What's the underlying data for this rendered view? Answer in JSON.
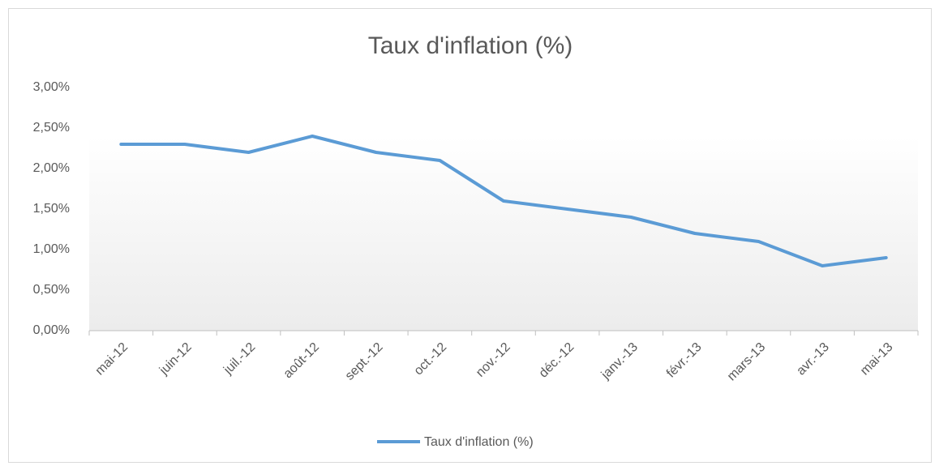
{
  "chart_data": {
    "type": "line",
    "title": "Taux d'inflation (%)",
    "categories": [
      "mai-12",
      "juin-12",
      "juil.-12",
      "août-12",
      "sept.-12",
      "oct.-12",
      "nov.-12",
      "déc.-12",
      "janv.-13",
      "févr.-13",
      "mars-13",
      "avr.-13",
      "mai-13"
    ],
    "series": [
      {
        "name": "Taux d'inflation (%)",
        "color": "#5b9bd5",
        "values": [
          2.3,
          2.3,
          2.2,
          2.4,
          2.2,
          2.1,
          1.6,
          1.5,
          1.4,
          1.2,
          1.1,
          0.8,
          0.9
        ]
      }
    ],
    "ylim": [
      0,
      3
    ],
    "yticks": [
      {
        "value": 0,
        "label": "0,00%"
      },
      {
        "value": 0.5,
        "label": "0,50%"
      },
      {
        "value": 1,
        "label": "1,00%"
      },
      {
        "value": 1.5,
        "label": "1,50%"
      },
      {
        "value": 2,
        "label": "2,00%"
      },
      {
        "value": 2.5,
        "label": "2,50%"
      },
      {
        "value": 3,
        "label": "3,00%"
      }
    ],
    "grid": false,
    "legend": "bottom"
  }
}
